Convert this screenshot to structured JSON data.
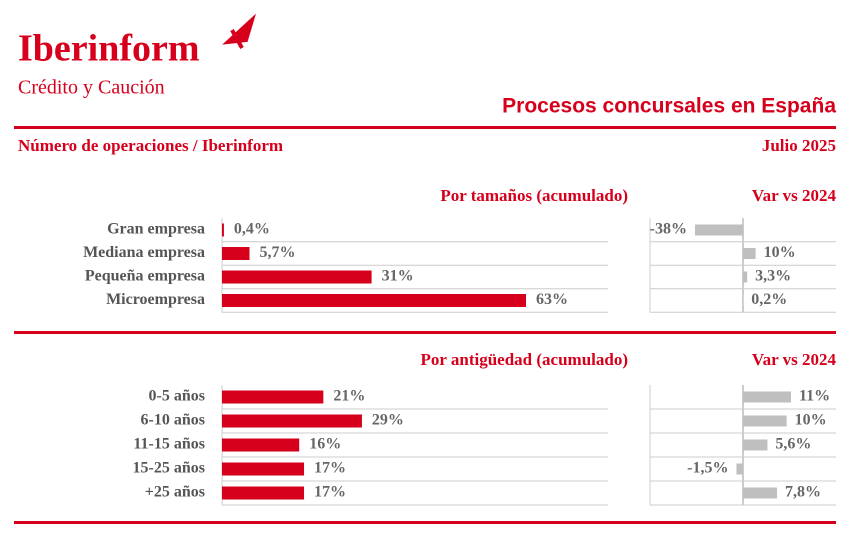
{
  "header": {
    "brand": "Iberinform",
    "tagline": "Crédito y Caución",
    "title": "Procesos concursales en España",
    "subtitle": "Número de operaciones / Iberinform",
    "date": "Julio 2025"
  },
  "chart_data": [
    {
      "type": "bar",
      "title": "Por tamaños (acumulado)",
      "categories": [
        "Gran empresa",
        "Mediana empresa",
        "Pequeña empresa",
        "Microempresa"
      ],
      "values": [
        0.4,
        5.7,
        31,
        63
      ],
      "value_labels": [
        "0,4%",
        "5,7%",
        "31%",
        "63%"
      ],
      "color": "#d6001c"
    },
    {
      "type": "bar",
      "title": "Var vs 2024",
      "values": [
        -38,
        10,
        3.3,
        0.2
      ],
      "value_labels": [
        "-38%",
        "10%",
        "3,3%",
        "0,2%"
      ],
      "color": "#bfbfbf"
    },
    {
      "type": "bar",
      "title": "Por antigüedad (acumulado)",
      "categories": [
        "0-5 años",
        "6-10 años",
        "11-15 años",
        "15-25 años",
        "+25 años"
      ],
      "values": [
        21,
        29,
        16,
        17,
        17
      ],
      "value_labels": [
        "21%",
        "29%",
        "16%",
        "17%",
        "17%"
      ],
      "color": "#d6001c"
    },
    {
      "type": "bar",
      "title": "Var vs 2024",
      "values": [
        11,
        10,
        5.6,
        -1.5,
        7.8
      ],
      "value_labels": [
        "11%",
        "10%",
        "5,6%",
        "-1,5%",
        "7,8%"
      ],
      "color": "#bfbfbf"
    }
  ]
}
